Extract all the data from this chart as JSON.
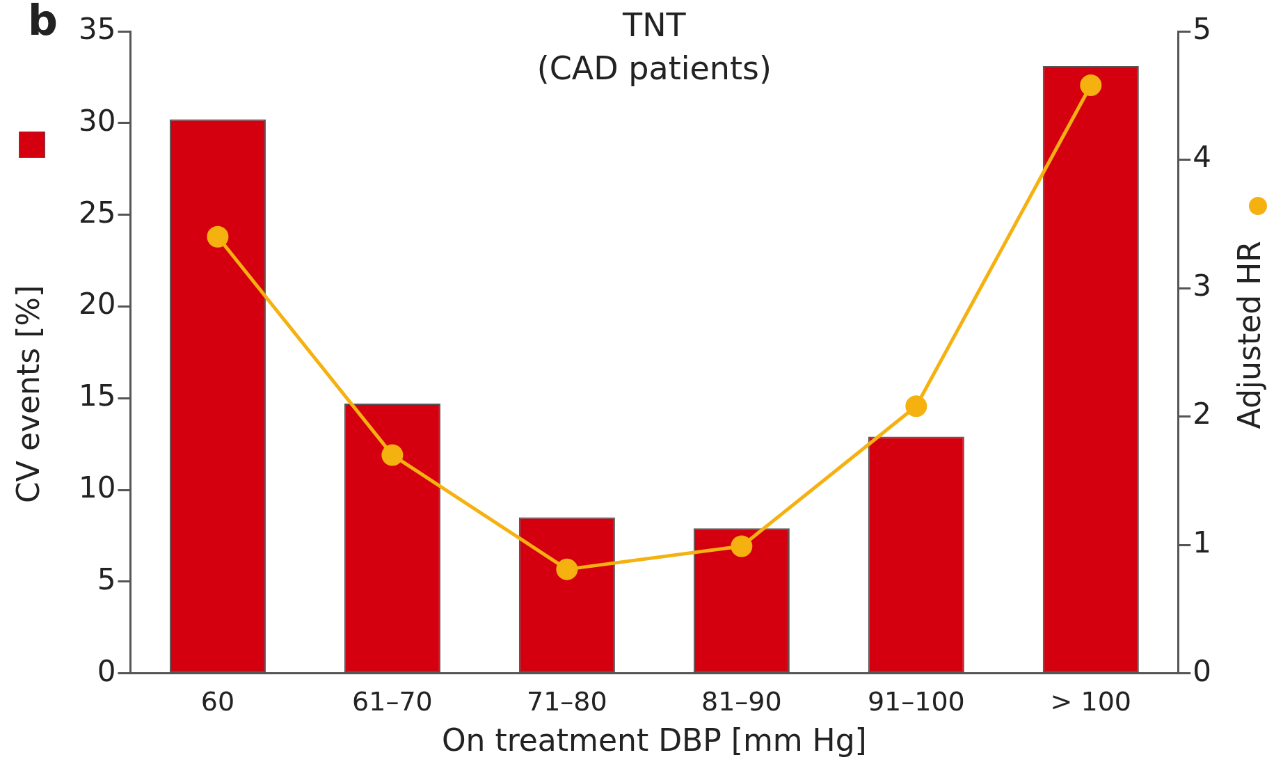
{
  "chart_data": {
    "type": "bar",
    "title": "TNT\n(CAD patients)",
    "xlabel": "On treatment DBP [mm Hg]",
    "ylabel": "CV events [%]",
    "y2label": "Adjusted HR",
    "annotations": [
      "b"
    ],
    "categories": [
      "60",
      "61–70",
      "71–80",
      "81–90",
      "91–100",
      "> 100"
    ],
    "series": [
      {
        "color": "#d40010",
        "values": [
          30.2,
          14.7,
          8.5,
          7.9,
          12.9,
          33.1
        ]
      },
      {
        "type": "line",
        "axis": "y2",
        "color": "#f5b110",
        "marker": "circle",
        "values": [
          3.4,
          1.7,
          0.81,
          0.99,
          2.08,
          4.58
        ]
      }
    ],
    "ylim": [
      0,
      35
    ],
    "yticks": [
      0,
      5,
      10,
      15,
      20,
      25,
      30,
      35
    ],
    "y2lim": [
      0,
      5
    ],
    "y2ticks": [
      0,
      1,
      2,
      3,
      4,
      5
    ],
    "grid": false,
    "legend": false
  }
}
